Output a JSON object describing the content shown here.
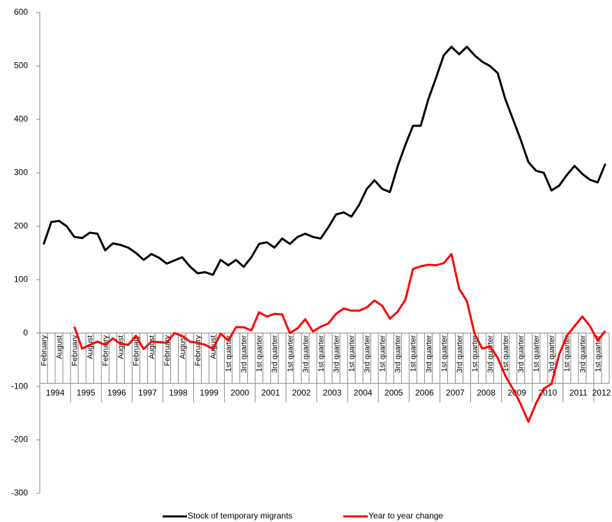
{
  "chart_data": {
    "type": "line",
    "categories": [
      "February",
      null,
      "August",
      null,
      "February",
      null,
      "August",
      null,
      "February",
      null,
      "August",
      null,
      "February",
      null,
      "August",
      null,
      "February",
      null,
      "August",
      null,
      "February",
      null,
      "August",
      null,
      "1st quarter",
      null,
      "3rd quarter",
      null,
      "1st quarter",
      null,
      "3rd quarter",
      null,
      "1st quarter",
      null,
      "3rd quarter",
      null,
      "1st quarter",
      null,
      "3rd quarter",
      null,
      "1st quarter",
      null,
      "3rd quarter",
      null,
      "1st quarter",
      null,
      "3rd quarter",
      null,
      "1st quarter",
      null,
      "3rd quarter",
      null,
      "1st quarter",
      null,
      "3rd quarter",
      null,
      "1st quarter",
      null,
      "3rd quarter",
      null,
      "1st quarter",
      null,
      "3rd quarter",
      null,
      "1st quarter",
      null,
      "3rd quarter",
      null,
      "1st quarter",
      null,
      "3rd quarter",
      null,
      "1st quarter",
      null
    ],
    "category_groups": [
      "1994",
      "1995",
      "1996",
      "1997",
      "1998",
      "1999",
      "2000",
      "2001",
      "2002",
      "2003",
      "2004",
      "2005",
      "2006",
      "2007",
      "2008",
      "2009",
      "2010",
      "2011",
      "2012"
    ],
    "series": [
      {
        "name": "Stock of temporary migrants",
        "color": "#000000",
        "values": [
          166,
          208,
          210,
          200,
          180,
          178,
          188,
          186,
          155,
          168,
          165,
          160,
          150,
          137,
          148,
          141,
          130,
          136,
          142,
          125,
          112,
          114,
          109,
          137,
          127,
          137,
          124,
          142,
          167,
          170,
          160,
          177,
          167,
          180,
          186,
          180,
          177,
          198,
          222,
          226,
          218,
          240,
          270,
          286,
          270,
          264,
          312,
          352,
          388,
          388,
          438,
          478,
          520,
          536,
          522,
          536,
          520,
          508,
          500,
          487,
          438,
          400,
          362,
          320,
          304,
          300,
          267,
          276,
          296,
          313,
          298,
          287,
          282,
          317
        ]
      },
      {
        "name": "Year to year change",
        "color": "#ff0000",
        "values": [
          null,
          null,
          null,
          null,
          12,
          -29,
          -22,
          -16,
          -22,
          -10,
          -20,
          -22,
          -5,
          -30,
          -16,
          -17,
          -18,
          0,
          -5,
          -16,
          -18,
          -22,
          -30,
          -1,
          -14,
          11,
          11,
          5,
          39,
          31,
          36,
          35,
          0,
          9,
          26,
          3,
          12,
          18,
          36,
          46,
          42,
          42,
          48,
          61,
          51,
          27,
          40,
          62,
          120,
          125,
          128,
          127,
          131,
          148,
          83,
          60,
          -1,
          -29,
          -25,
          -46,
          -80,
          -105,
          -133,
          -166,
          -131,
          -104,
          -95,
          -40,
          -5,
          13,
          31,
          13,
          -14,
          4
        ]
      }
    ],
    "ylim": [
      -300,
      600
    ],
    "yticks": [
      -300,
      -200,
      -100,
      0,
      100,
      200,
      300,
      400,
      500,
      600
    ],
    "grid": false,
    "legend": "bottom"
  }
}
